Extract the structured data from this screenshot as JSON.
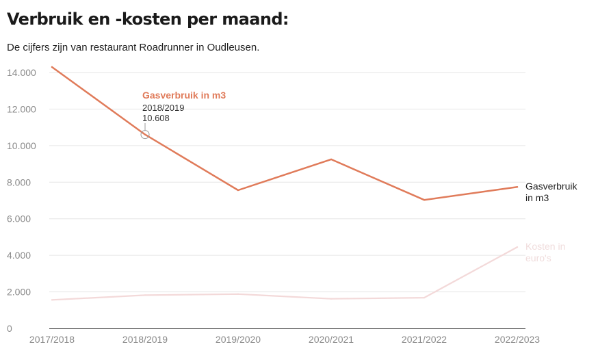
{
  "title": "Verbruik en -kosten per maand:",
  "subtitle": "De cijfers zijn van restaurant Roadrunner in Oudleusen.",
  "colors": {
    "gas": "#e07b5a",
    "costs": "#f3d9d9",
    "grid": "#e6e6e6",
    "axis": "#333333",
    "tick": "#8a8a8a"
  },
  "chart_data": {
    "type": "line",
    "categories": [
      "2017/2018",
      "2018/2019",
      "2019/2020",
      "2020/2021",
      "2021/2022",
      "2022/2023"
    ],
    "ylim": [
      0,
      14000
    ],
    "yticks": [
      0,
      2000,
      4000,
      6000,
      8000,
      10000,
      12000,
      14000
    ],
    "ytick_labels": [
      "0",
      "2.000",
      "4.000",
      "6.000",
      "8.000",
      "10.000",
      "12.000",
      "14.000"
    ],
    "grid": true,
    "series": [
      {
        "name": "Kosten in euro's",
        "label_lines": [
          "Kosten in",
          "euro's"
        ],
        "values": [
          1560,
          1820,
          1880,
          1620,
          1680,
          4450
        ],
        "color": "#f3d9d9",
        "label_color": "#f0dcdc"
      },
      {
        "name": "Gasverbruik in m3",
        "label_lines": [
          "Gasverbruik",
          "in m3"
        ],
        "values": [
          14300,
          10608,
          7560,
          9250,
          7030,
          7740
        ],
        "color": "#e07b5a",
        "label_color": "#222222"
      }
    ],
    "annotation": {
      "series": "Gasverbruik in m3",
      "category": "2018/2019",
      "title": "Gasverbruik in m3",
      "line1": "2018/2019",
      "line2": "10.608"
    }
  }
}
